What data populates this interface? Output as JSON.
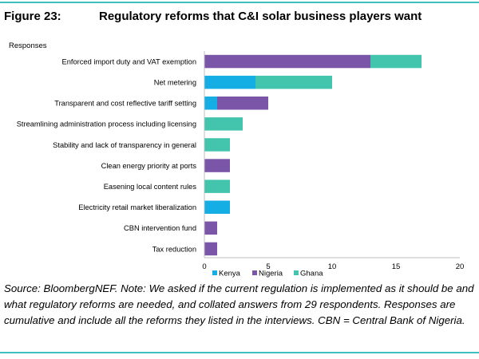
{
  "figure": {
    "label": "Figure 23:",
    "title": "Regulatory reforms that C&I solar business players want"
  },
  "chart_data": {
    "type": "bar",
    "orientation": "horizontal",
    "stacked": true,
    "ylabel": "Responses",
    "categories": [
      "Enforced import duty and VAT exemption",
      "Net metering",
      "Transparent and cost reflective tariff setting",
      "Streamlining administration process including licensing",
      "Stability and lack of transparency in general",
      "Clean energy priority at ports",
      "Easening local content rules",
      "Electricity retail market liberalization",
      "CBN intervention fund",
      "Tax reduction"
    ],
    "series": [
      {
        "name": "Kenya",
        "color": "#14aee5",
        "values": [
          0,
          4,
          1,
          0,
          0,
          0,
          0,
          2,
          0,
          0
        ]
      },
      {
        "name": "Nigeria",
        "color": "#7a55a8",
        "values": [
          13,
          0,
          4,
          0,
          0,
          2,
          0,
          0,
          1,
          1
        ]
      },
      {
        "name": "Ghana",
        "color": "#43c4ad",
        "values": [
          4,
          6,
          0,
          3,
          2,
          0,
          2,
          0,
          0,
          0
        ]
      }
    ],
    "xlim": [
      0,
      20
    ],
    "xticks": [
      "0",
      "5",
      "10",
      "15",
      "20"
    ],
    "legend_position": "bottom",
    "grid": false
  },
  "source_note": "Source: BloombergNEF. Note: We asked if the current regulation is implemented as it should be and what regulatory reforms are needed, and collated answers from 29 respondents. Responses are cumulative and include all the reforms they listed in the interviews. CBN = Central Bank of Nigeria."
}
